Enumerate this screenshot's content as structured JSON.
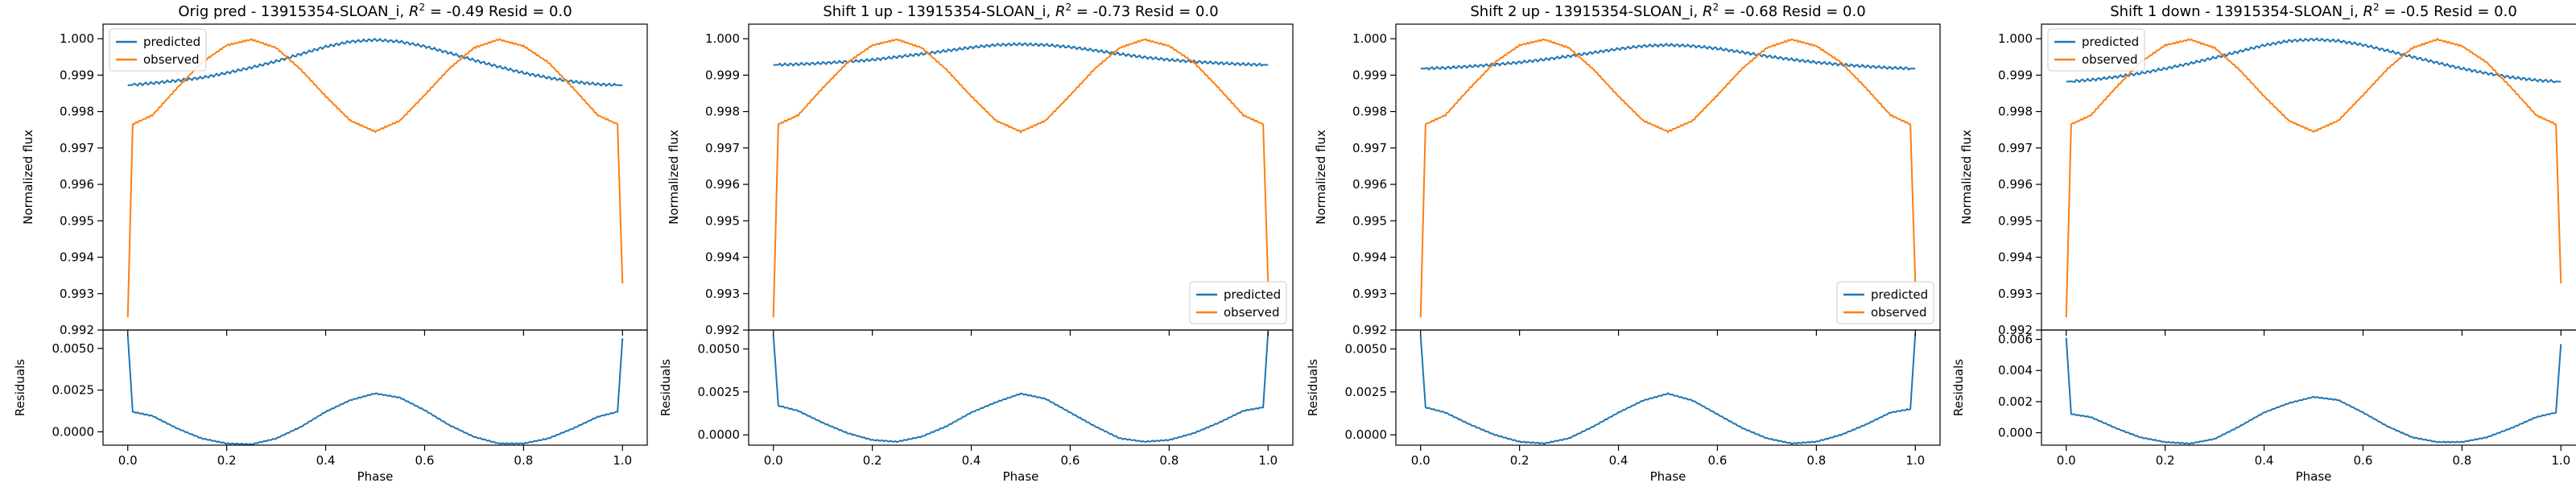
{
  "figure": {
    "colors": {
      "predicted": "#1f77b4",
      "observed": "#ff7f0e"
    }
  },
  "chart_data": [
    {
      "type": "line",
      "title": "Orig pred - 13915354-SLOAN_i, $R^2 = -0.49$ Resid = 0.0",
      "title_text": {
        "pre": "Orig pred - 13915354-SLOAN_i, ",
        "r2": "-0.49",
        "post": " Resid = 0.0"
      },
      "xlabel": "Phase",
      "ylabel": "Normalized flux",
      "resid_ylabel": "Residuals",
      "xlim": [
        -0.05,
        1.05
      ],
      "ylim": [
        0.992,
        1.0004
      ],
      "yticks": [
        0.992,
        0.993,
        0.994,
        0.995,
        0.996,
        0.997,
        0.998,
        0.999,
        1.0
      ],
      "ytick_labels": [
        "0.992",
        "0.993",
        "0.994",
        "0.995",
        "0.996",
        "0.997",
        "0.998",
        "0.999",
        "1.000"
      ],
      "xticks": [
        0.0,
        0.2,
        0.4,
        0.6,
        0.8,
        1.0
      ],
      "xtick_labels": [
        "0.0",
        "0.2",
        "0.4",
        "0.6",
        "0.8",
        "1.0"
      ],
      "resid_ylim": [
        -0.0008,
        0.0061
      ],
      "resid_yticks": [
        0.0,
        0.0025,
        0.005
      ],
      "resid_ytick_labels": [
        "0.0000",
        "0.0025",
        "0.0050"
      ],
      "legend_position": "upper left",
      "series": [
        {
          "name": "predicted",
          "x": [
            0.0,
            0.05,
            0.1,
            0.15,
            0.2,
            0.25,
            0.3,
            0.35,
            0.4,
            0.45,
            0.5,
            0.55,
            0.6,
            0.65,
            0.7,
            0.75,
            0.8,
            0.85,
            0.9,
            0.95,
            1.0
          ],
          "y": [
            0.99872,
            0.99878,
            0.99885,
            0.99893,
            0.99906,
            0.99921,
            0.99938,
            0.99958,
            0.99978,
            0.99992,
            0.99997,
            0.99992,
            0.99979,
            0.99961,
            0.99941,
            0.99923,
            0.99906,
            0.99893,
            0.99882,
            0.99875,
            0.99872
          ]
        },
        {
          "name": "observed",
          "x": [
            0.0,
            0.01,
            0.05,
            0.1,
            0.15,
            0.2,
            0.25,
            0.3,
            0.35,
            0.4,
            0.45,
            0.5,
            0.55,
            0.6,
            0.65,
            0.7,
            0.75,
            0.8,
            0.85,
            0.9,
            0.95,
            0.99,
            1.0
          ],
          "y": [
            0.99235,
            0.99765,
            0.9979,
            0.99865,
            0.99935,
            0.99982,
            0.99998,
            0.99975,
            0.99915,
            0.99842,
            0.99775,
            0.99745,
            0.99775,
            0.99845,
            0.99918,
            0.99975,
            0.99998,
            0.9998,
            0.99935,
            0.99865,
            0.9979,
            0.99765,
            0.99328
          ]
        }
      ],
      "residuals": {
        "x": [
          0.0,
          0.01,
          0.05,
          0.1,
          0.15,
          0.2,
          0.25,
          0.3,
          0.35,
          0.4,
          0.45,
          0.5,
          0.55,
          0.6,
          0.65,
          0.7,
          0.75,
          0.8,
          0.85,
          0.9,
          0.95,
          0.99,
          1.0
        ],
        "y": [
          0.0058,
          0.0012,
          0.00095,
          0.0002,
          -0.0004,
          -0.0007,
          -0.00075,
          -0.0004,
          0.0003,
          0.0012,
          0.0019,
          0.0023,
          0.00205,
          0.0013,
          0.0004,
          -0.0003,
          -0.0007,
          -0.0007,
          -0.0004,
          0.0002,
          0.0009,
          0.0012,
          0.0056
        ]
      }
    },
    {
      "type": "line",
      "title": "Shift 1 up - 13915354-SLOAN_i, $R^2 = -0.73$ Resid = 0.0",
      "title_text": {
        "pre": "Shift 1 up - 13915354-SLOAN_i, ",
        "r2": "-0.73",
        "post": " Resid = 0.0"
      },
      "xlabel": "Phase",
      "ylabel": "Normalized flux",
      "resid_ylabel": "Residuals",
      "xlim": [
        -0.05,
        1.05
      ],
      "ylim": [
        0.992,
        1.0004
      ],
      "yticks": [
        0.992,
        0.993,
        0.994,
        0.995,
        0.996,
        0.997,
        0.998,
        0.999,
        1.0
      ],
      "ytick_labels": [
        "0.992",
        "0.993",
        "0.994",
        "0.995",
        "0.996",
        "0.997",
        "0.998",
        "0.999",
        "1.000"
      ],
      "xticks": [
        0.0,
        0.2,
        0.4,
        0.6,
        0.8,
        1.0
      ],
      "xtick_labels": [
        "0.0",
        "0.2",
        "0.4",
        "0.6",
        "0.8",
        "1.0"
      ],
      "resid_ylim": [
        -0.0006,
        0.0061
      ],
      "resid_yticks": [
        0.0,
        0.0025,
        0.005
      ],
      "resid_ytick_labels": [
        "0.0000",
        "0.0025",
        "0.0050"
      ],
      "legend_position": "lower right",
      "series": [
        {
          "name": "predicted",
          "x": [
            0.0,
            0.05,
            0.1,
            0.15,
            0.2,
            0.25,
            0.3,
            0.35,
            0.4,
            0.45,
            0.5,
            0.55,
            0.6,
            0.65,
            0.7,
            0.75,
            0.8,
            0.85,
            0.9,
            0.95,
            1.0
          ],
          "y": [
            0.99928,
            0.9993,
            0.99933,
            0.99937,
            0.99942,
            0.9995,
            0.99958,
            0.99967,
            0.99976,
            0.99983,
            0.99985,
            0.99983,
            0.99977,
            0.99968,
            0.99958,
            0.99949,
            0.99942,
            0.99937,
            0.99933,
            0.9993,
            0.99928
          ]
        },
        {
          "name": "observed",
          "x": [
            0.0,
            0.01,
            0.05,
            0.1,
            0.15,
            0.2,
            0.25,
            0.3,
            0.35,
            0.4,
            0.45,
            0.5,
            0.55,
            0.6,
            0.65,
            0.7,
            0.75,
            0.8,
            0.85,
            0.9,
            0.95,
            0.99,
            1.0
          ],
          "y": [
            0.99235,
            0.99765,
            0.9979,
            0.99865,
            0.99935,
            0.99982,
            0.99998,
            0.99975,
            0.99915,
            0.99842,
            0.99775,
            0.99745,
            0.99775,
            0.99845,
            0.99918,
            0.99975,
            0.99998,
            0.9998,
            0.99935,
            0.99865,
            0.9979,
            0.99765,
            0.99328
          ]
        }
      ],
      "residuals": {
        "x": [
          0.0,
          0.01,
          0.05,
          0.1,
          0.15,
          0.2,
          0.25,
          0.3,
          0.35,
          0.4,
          0.45,
          0.5,
          0.55,
          0.6,
          0.65,
          0.7,
          0.75,
          0.8,
          0.85,
          0.9,
          0.95,
          0.99,
          1.0
        ],
        "y": [
          0.0058,
          0.0017,
          0.0014,
          0.0007,
          0.0001,
          -0.0003,
          -0.0004,
          -0.0001,
          0.0005,
          0.0013,
          0.0019,
          0.0024,
          0.0021,
          0.0013,
          0.0005,
          -0.0002,
          -0.0004,
          -0.0003,
          0.0001,
          0.0007,
          0.0014,
          0.0016,
          0.006
        ]
      }
    },
    {
      "type": "line",
      "title": "Shift 2 up - 13915354-SLOAN_i, $R^2 = -0.68$ Resid = 0.0",
      "title_text": {
        "pre": "Shift 2 up - 13915354-SLOAN_i, ",
        "r2": "-0.68",
        "post": " Resid = 0.0"
      },
      "xlabel": "Phase",
      "ylabel": "Normalized flux",
      "resid_ylabel": "Residuals",
      "xlim": [
        -0.05,
        1.05
      ],
      "ylim": [
        0.992,
        1.0004
      ],
      "yticks": [
        0.992,
        0.993,
        0.994,
        0.995,
        0.996,
        0.997,
        0.998,
        0.999,
        1.0
      ],
      "ytick_labels": [
        "0.992",
        "0.993",
        "0.994",
        "0.995",
        "0.996",
        "0.997",
        "0.998",
        "0.999",
        "1.000"
      ],
      "xticks": [
        0.0,
        0.2,
        0.4,
        0.6,
        0.8,
        1.0
      ],
      "xtick_labels": [
        "0.0",
        "0.2",
        "0.4",
        "0.6",
        "0.8",
        "1.0"
      ],
      "resid_ylim": [
        -0.0006,
        0.0061
      ],
      "resid_yticks": [
        0.0,
        0.0025,
        0.005
      ],
      "resid_ytick_labels": [
        "0.0000",
        "0.0025",
        "0.0050"
      ],
      "legend_position": "lower right",
      "series": [
        {
          "name": "predicted",
          "x": [
            0.0,
            0.05,
            0.1,
            0.15,
            0.2,
            0.25,
            0.3,
            0.35,
            0.4,
            0.45,
            0.5,
            0.55,
            0.6,
            0.65,
            0.7,
            0.75,
            0.8,
            0.85,
            0.9,
            0.95,
            1.0
          ],
          "y": [
            0.99918,
            0.9992,
            0.99924,
            0.99929,
            0.99935,
            0.99943,
            0.99952,
            0.99962,
            0.99972,
            0.9998,
            0.99983,
            0.9998,
            0.99973,
            0.99963,
            0.99952,
            0.99943,
            0.99935,
            0.99929,
            0.99924,
            0.9992,
            0.99918
          ]
        },
        {
          "name": "observed",
          "x": [
            0.0,
            0.01,
            0.05,
            0.1,
            0.15,
            0.2,
            0.25,
            0.3,
            0.35,
            0.4,
            0.45,
            0.5,
            0.55,
            0.6,
            0.65,
            0.7,
            0.75,
            0.8,
            0.85,
            0.9,
            0.95,
            0.99,
            1.0
          ],
          "y": [
            0.99235,
            0.99765,
            0.9979,
            0.99865,
            0.99935,
            0.99982,
            0.99998,
            0.99975,
            0.99915,
            0.99842,
            0.99775,
            0.99745,
            0.99775,
            0.99845,
            0.99918,
            0.99975,
            0.99998,
            0.9998,
            0.99935,
            0.99865,
            0.9979,
            0.99765,
            0.99328
          ]
        }
      ],
      "residuals": {
        "x": [
          0.0,
          0.01,
          0.05,
          0.1,
          0.15,
          0.2,
          0.25,
          0.3,
          0.35,
          0.4,
          0.45,
          0.5,
          0.55,
          0.6,
          0.65,
          0.7,
          0.75,
          0.8,
          0.85,
          0.9,
          0.95,
          0.99,
          1.0
        ],
        "y": [
          0.0058,
          0.0016,
          0.0013,
          0.0006,
          0.0,
          -0.0004,
          -0.0005,
          -0.0002,
          0.0005,
          0.0013,
          0.002,
          0.0024,
          0.002,
          0.0012,
          0.0004,
          -0.0002,
          -0.0005,
          -0.0004,
          0.0,
          0.0006,
          0.0013,
          0.0015,
          0.0059
        ]
      }
    },
    {
      "type": "line",
      "title": "Shift 1 down - 13915354-SLOAN_i, $R^2 = -0.5$ Resid = 0.0",
      "title_text": {
        "pre": "Shift 1 down - 13915354-SLOAN_i, ",
        "r2": "-0.5",
        "post": " Resid = 0.0"
      },
      "xlabel": "Phase",
      "ylabel": "Normalized flux",
      "resid_ylabel": "Residuals",
      "xlim": [
        -0.05,
        1.05
      ],
      "ylim": [
        0.992,
        1.0004
      ],
      "yticks": [
        0.992,
        0.993,
        0.994,
        0.995,
        0.996,
        0.997,
        0.998,
        0.999,
        1.0
      ],
      "ytick_labels": [
        "0.992",
        "0.993",
        "0.994",
        "0.995",
        "0.996",
        "0.997",
        "0.998",
        "0.999",
        "1.000"
      ],
      "xticks": [
        0.0,
        0.2,
        0.4,
        0.6,
        0.8,
        1.0
      ],
      "xtick_labels": [
        "0.0",
        "0.2",
        "0.4",
        "0.6",
        "0.8",
        "1.0"
      ],
      "resid_ylim": [
        -0.0008,
        0.0066
      ],
      "resid_yticks": [
        0.0,
        0.002,
        0.004,
        0.006
      ],
      "resid_ytick_labels": [
        "0.000",
        "0.002",
        "0.004",
        "0.006"
      ],
      "legend_position": "upper left",
      "series": [
        {
          "name": "predicted",
          "x": [
            0.0,
            0.05,
            0.1,
            0.15,
            0.2,
            0.25,
            0.3,
            0.35,
            0.4,
            0.45,
            0.5,
            0.55,
            0.6,
            0.65,
            0.7,
            0.75,
            0.8,
            0.85,
            0.9,
            0.95,
            1.0
          ],
          "y": [
            0.99882,
            0.99887,
            0.99895,
            0.99905,
            0.99918,
            0.99932,
            0.99948,
            0.99965,
            0.99982,
            0.99994,
            0.99998,
            0.99994,
            0.99983,
            0.99967,
            0.9995,
            0.99934,
            0.99918,
            0.99905,
            0.99894,
            0.99886,
            0.99882
          ]
        },
        {
          "name": "observed",
          "x": [
            0.0,
            0.01,
            0.05,
            0.1,
            0.15,
            0.2,
            0.25,
            0.3,
            0.35,
            0.4,
            0.45,
            0.5,
            0.55,
            0.6,
            0.65,
            0.7,
            0.75,
            0.8,
            0.85,
            0.9,
            0.95,
            0.99,
            1.0
          ],
          "y": [
            0.99235,
            0.99765,
            0.9979,
            0.99865,
            0.99935,
            0.99982,
            0.99998,
            0.99975,
            0.99915,
            0.99842,
            0.99775,
            0.99745,
            0.99775,
            0.99845,
            0.99918,
            0.99975,
            0.99998,
            0.9998,
            0.99935,
            0.99865,
            0.9979,
            0.99765,
            0.99328
          ]
        }
      ],
      "residuals": {
        "x": [
          0.0,
          0.01,
          0.05,
          0.1,
          0.15,
          0.2,
          0.25,
          0.3,
          0.35,
          0.4,
          0.45,
          0.5,
          0.55,
          0.6,
          0.65,
          0.7,
          0.75,
          0.8,
          0.85,
          0.9,
          0.95,
          0.99,
          1.0
        ],
        "y": [
          0.0061,
          0.0012,
          0.001,
          0.0003,
          -0.0003,
          -0.0006,
          -0.0007,
          -0.0004,
          0.0004,
          0.0013,
          0.0019,
          0.0023,
          0.0021,
          0.0013,
          0.0004,
          -0.0003,
          -0.0006,
          -0.0006,
          -0.0003,
          0.0003,
          0.001,
          0.0013,
          0.0057
        ]
      }
    }
  ]
}
